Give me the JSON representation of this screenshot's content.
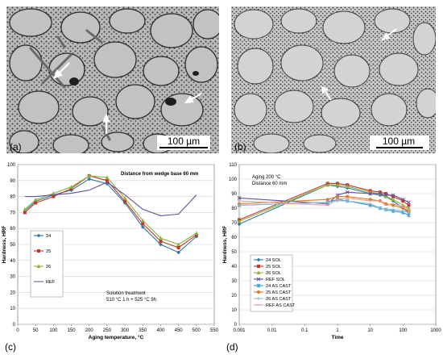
{
  "panel_a": {
    "label": "(a)",
    "scalebar": "100 µm"
  },
  "panel_b": {
    "label": "(b)",
    "scalebar": "100 µm"
  },
  "colors": {
    "24": "#2e7aa8",
    "25": "#c0392b",
    "26": "#8db33a",
    "REF": "#6a4e9a",
    "24 AS CAST": "#2e9fc7",
    "25 AS CAST": "#e07b22",
    "26 AS CAST": "#8fb3d9",
    "REF AS CAST": "#e89a98"
  },
  "chart_data": [
    {
      "panel": "(c)",
      "type": "line",
      "xlabel": "Aging temperature, °C",
      "ylabel": "Hardness, HRF",
      "xlim": [
        0,
        550
      ],
      "ylim": [
        0,
        100
      ],
      "xticks": [
        0,
        50,
        100,
        150,
        200,
        250,
        300,
        350,
        400,
        450,
        500,
        550
      ],
      "yticks": [
        0,
        10,
        20,
        30,
        40,
        50,
        60,
        70,
        80,
        90,
        100
      ],
      "annotation_top": "Distance from wedge base  60 mm",
      "annotation_bottom": [
        "Solution treatment",
        "510 °C 1 h + 525 °C 9h"
      ],
      "legend_position": "left",
      "series": [
        {
          "name": "24",
          "marker": "diamond",
          "x": [
            20,
            50,
            100,
            150,
            200,
            250,
            300,
            350,
            400,
            450,
            500
          ],
          "y": [
            71,
            77,
            81,
            84,
            91,
            88,
            76,
            61,
            50,
            45,
            55
          ]
        },
        {
          "name": "25",
          "marker": "square",
          "x": [
            20,
            50,
            100,
            150,
            200,
            250,
            300,
            350,
            400,
            450,
            500
          ],
          "y": [
            70,
            76,
            80,
            85,
            93,
            90,
            77,
            63,
            52,
            48,
            56
          ]
        },
        {
          "name": "26",
          "marker": "triangle",
          "x": [
            20,
            50,
            100,
            150,
            200,
            250,
            300,
            350,
            400,
            450,
            500
          ],
          "y": [
            72,
            78,
            82,
            86,
            93,
            92,
            79,
            65,
            54,
            50,
            57
          ]
        },
        {
          "name": "REF",
          "marker": "none",
          "x": [
            20,
            50,
            100,
            150,
            200,
            250,
            300,
            350,
            400,
            450,
            500
          ],
          "y": [
            80,
            80,
            81,
            82,
            84,
            89,
            81,
            72,
            68,
            69,
            81
          ]
        }
      ]
    },
    {
      "panel": "(d)",
      "type": "line",
      "xlabel": "Time",
      "ylabel": "Hardness, HRF",
      "xscale": "log",
      "xlim": [
        0.001,
        1000
      ],
      "ylim": [
        0,
        110
      ],
      "xticks": [
        "0.001",
        "0.01",
        "0.1",
        "1",
        "10",
        "100",
        "1000"
      ],
      "yticks": [
        0,
        10,
        20,
        30,
        40,
        50,
        60,
        70,
        80,
        90,
        100,
        110
      ],
      "annotation_top": [
        "Aging 200 °C",
        "Distance 60 mm"
      ],
      "legend_position": "left",
      "series": [
        {
          "name": "24 SOL",
          "marker": "diamond",
          "x": [
            0.001,
            0.5,
            1,
            2,
            10,
            20,
            30,
            50,
            100,
            150
          ],
          "y": [
            69,
            96,
            95,
            94,
            90,
            89,
            88,
            85,
            80,
            77
          ]
        },
        {
          "name": "25 SOL",
          "marker": "square",
          "x": [
            0.001,
            0.5,
            1,
            2,
            10,
            20,
            30,
            50,
            100,
            150
          ],
          "y": [
            72,
            97,
            97,
            96,
            92,
            91,
            90,
            88,
            85,
            82
          ]
        },
        {
          "name": "26 SOL",
          "marker": "triangle",
          "x": [
            0.001,
            0.5,
            1,
            2,
            10,
            20,
            30,
            50,
            100,
            150
          ],
          "y": [
            71,
            96,
            96,
            95,
            91,
            90,
            88,
            86,
            82,
            80
          ]
        },
        {
          "name": "REF SOL",
          "marker": "x",
          "x": [
            0.001,
            0.5,
            1,
            2,
            10,
            20,
            30,
            50,
            100,
            150
          ],
          "y": [
            87,
            83,
            89,
            91,
            90,
            90,
            89,
            89,
            86,
            84
          ]
        },
        {
          "name": "24 AS CAST",
          "marker": "star",
          "x": [
            0.001,
            0.5,
            1,
            2,
            10,
            20,
            30,
            50,
            100,
            150
          ],
          "y": [
            82,
            84,
            86,
            85,
            82,
            80,
            79,
            78,
            77,
            75
          ]
        },
        {
          "name": "25 AS CAST",
          "marker": "circle",
          "x": [
            0.001,
            0.5,
            1,
            2,
            10,
            20,
            30,
            50,
            100,
            150
          ],
          "y": [
            83,
            86,
            88,
            88,
            86,
            85,
            83,
            82,
            80,
            78
          ]
        },
        {
          "name": "26 AS CAST",
          "marker": "plus",
          "x": [
            0.001,
            0.5,
            1,
            2,
            10,
            20,
            30,
            50,
            100,
            150
          ],
          "y": [
            82,
            84,
            85,
            85,
            83,
            80,
            79,
            79,
            78,
            77
          ]
        },
        {
          "name": "REF AS CAST",
          "marker": "dash",
          "x": [
            0.001,
            0.5,
            1,
            2,
            10,
            20,
            30,
            50,
            100,
            150
          ],
          "y": [
            85,
            82,
            86,
            87,
            85,
            85,
            82,
            83,
            81,
            79
          ]
        }
      ]
    }
  ]
}
